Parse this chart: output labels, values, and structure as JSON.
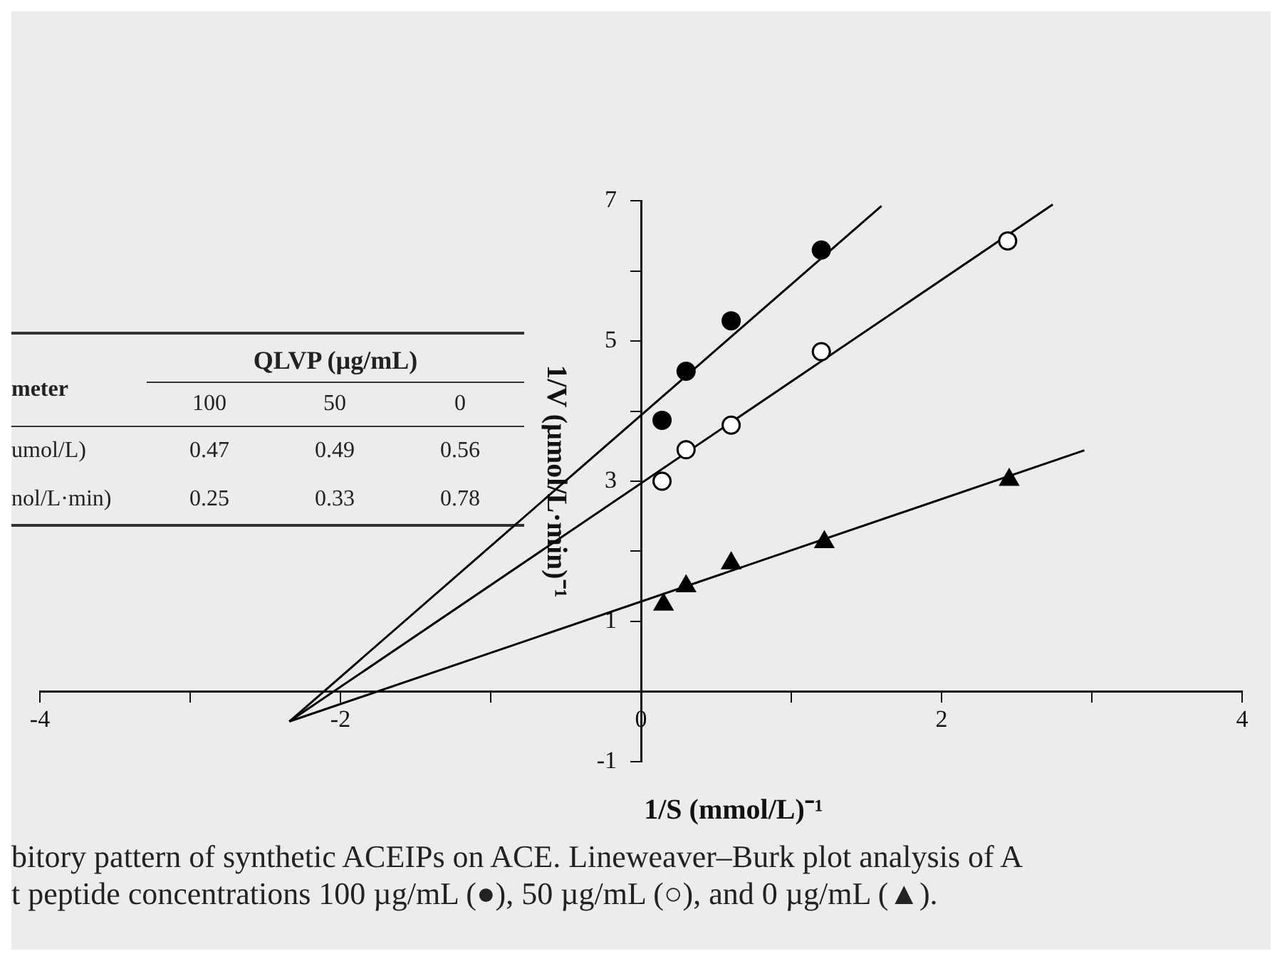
{
  "chart_data": [
    {
      "type": "other",
      "title": "QLVP (µg/mL)",
      "annotations": [
        "meter",
        "100",
        "50",
        "0",
        "umol/L)",
        "0.47",
        "0.49",
        "0.56",
        "nol/L·min)",
        "0.25",
        "0.33",
        "0.78"
      ]
    },
    {
      "type": "scatter",
      "xlabel": "1/S (mmol/L)⁻¹",
      "ylabel": "1/V (µmol/L·min)⁻¹",
      "xlim": [
        -4,
        4
      ],
      "xticks": [
        -4,
        {
          "value": -3,
          "label": null
        },
        -2,
        {
          "value": -1,
          "label": null
        },
        0,
        {
          "value": 1,
          "label": null
        },
        2,
        {
          "value": 3,
          "label": null
        },
        4
      ],
      "ylim": [
        -1,
        7
      ],
      "yticks": [
        -1,
        {
          "value": 0,
          "label": null
        },
        1,
        {
          "value": 2,
          "label": null
        },
        3,
        {
          "value": 4,
          "label": null
        },
        5,
        {
          "value": 6,
          "label": null
        },
        7
      ],
      "series": [
        {
          "type": "scatter",
          "marker": "circle",
          "color": "#000000",
          "x": [
            0.14,
            0.3,
            0.6,
            1.2
          ],
          "values": [
            3.87,
            4.57,
            5.29,
            6.3
          ]
        },
        {
          "type": "scatter",
          "marker": "circle",
          "color": "#000000",
          "x": [
            0.14,
            0.3,
            0.6,
            1.2,
            2.44
          ],
          "values": [
            3.0,
            3.45,
            3.8,
            4.85,
            6.43
          ]
        },
        {
          "type": "scatter",
          "marker": "triangle",
          "color": "#000000",
          "x": [
            0.15,
            0.3,
            0.6,
            1.22,
            2.45
          ],
          "values": [
            1.24,
            1.5,
            1.83,
            2.13,
            3.02
          ]
        },
        {
          "type": "line",
          "marker": "none",
          "color": "#000000",
          "x": [
            -2.34,
            1.6
          ],
          "values": [
            -0.43,
            6.93
          ]
        },
        {
          "type": "line",
          "marker": "none",
          "color": "#000000",
          "x": [
            -2.34,
            2.74
          ],
          "values": [
            -0.43,
            6.95
          ]
        },
        {
          "type": "line",
          "marker": "none",
          "color": "#000000",
          "x": [
            -2.34,
            2.95
          ],
          "values": [
            -0.43,
            3.44
          ]
        }
      ],
      "annotations": [
        "bitory pattern of synthetic ACEIPs on ACE. Lineweaver–Burk plot analysis of A",
        "t peptide concentrations 100 µg/mL (●), 50 µg/mL (○), and 0 µg/mL (▲)."
      ]
    }
  ]
}
